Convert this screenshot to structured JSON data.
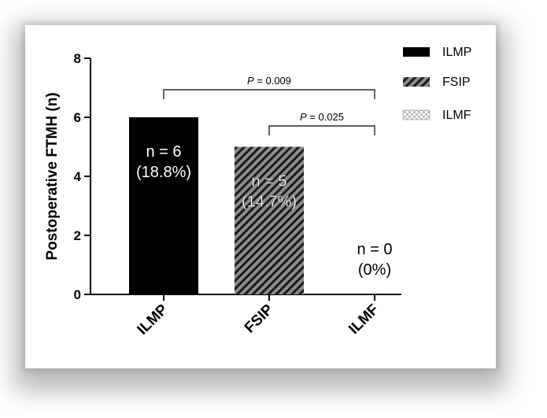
{
  "chart_data": {
    "type": "bar",
    "categories": [
      "ILMP",
      "FSIP",
      "ILMF"
    ],
    "values": [
      6,
      5,
      0
    ],
    "bar_labels": [
      {
        "line1": "n = 6",
        "line2": "(18.8%)"
      },
      {
        "line1": "n = 5",
        "line2": "(14.7%)"
      },
      {
        "line1": "n = 0",
        "line2": "(0%)"
      }
    ],
    "patterns": [
      "solid-black",
      "diagonal-hatch",
      "checkered"
    ],
    "title": "",
    "xlabel": "",
    "ylabel": "Postoperative FTMH (n)",
    "ylim": [
      0,
      8
    ],
    "yticks": [
      0,
      2,
      4,
      6,
      8
    ],
    "grid": false,
    "legend": {
      "placement": "top-right",
      "entries": [
        "ILMP",
        "FSIP",
        "ILMF"
      ]
    },
    "annotations": [
      {
        "p_label": "P",
        "p_value": " = 0.009",
        "from": "ILMP",
        "to": "ILMF"
      },
      {
        "p_label": "P",
        "p_value": " = 0.025",
        "from": "FSIP",
        "to": "ILMF"
      }
    ]
  },
  "colors": {
    "ilmp_fill": "#000000",
    "hatch_bg": "#8c8c8c",
    "hatch_line": "#1a1a1a",
    "check_light": "#ffffff",
    "check_dark": "#bdbdbd",
    "axis": "#000000"
  }
}
